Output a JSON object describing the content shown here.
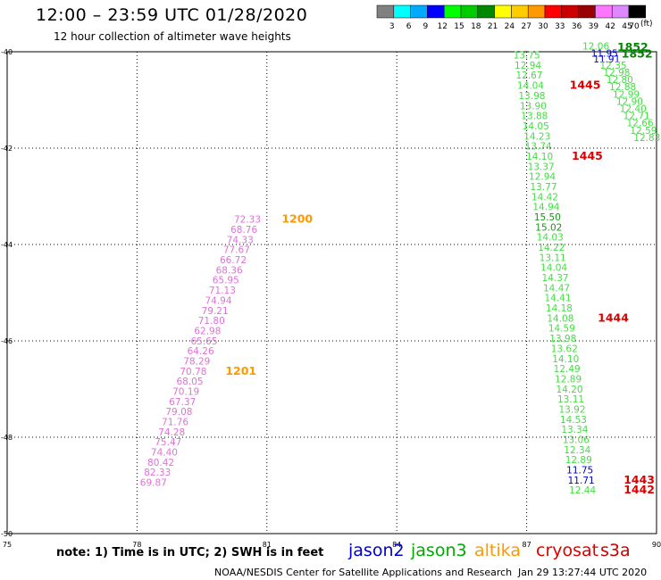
{
  "header": {
    "title": "12:00 – 23:59 UTC 01/28/2020",
    "subtitle": "12 hour collection of altimeter wave heights"
  },
  "footer": {
    "note": "note: 1) Time is in UTC; 2) SWH is in feet",
    "credit": "NOAA/NESDIS Center for Satellite Applications and Research",
    "timestamp": "Jan 29 13:27:44 UTC 2020"
  },
  "satellites": [
    {
      "name": "jason2",
      "color": "#0000cc"
    },
    {
      "name": "jason3",
      "color": "#00aa00"
    },
    {
      "name": "altika",
      "color": "#ff9900"
    },
    {
      "name": "cryosat",
      "color": "#dd0000"
    },
    {
      "name": "s3a",
      "color": "#cc0000"
    }
  ],
  "colorbar": {
    "unit": "(ft)",
    "levels": [
      "3",
      "6",
      "9",
      "12",
      "15",
      "18",
      "21",
      "24",
      "27",
      "30",
      "33",
      "36",
      "39",
      "42",
      "45",
      "70"
    ],
    "colors": [
      "#808080",
      "#00ffff",
      "#00aaff",
      "#0000ff",
      "#00ff00",
      "#00cc00",
      "#008800",
      "#ffff00",
      "#ffcc00",
      "#ff9900",
      "#ff0000",
      "#cc0000",
      "#990000",
      "#ff77ff",
      "#dd88ff",
      "#000000"
    ]
  },
  "chart_data": {
    "type": "scatter",
    "x_ticks": [
      "75",
      "78",
      "81",
      "84",
      "87",
      "90"
    ],
    "y_ticks": [
      "-40",
      "-42",
      "-44",
      "-46",
      "-48",
      "-50"
    ],
    "xlim": [
      75,
      90
    ],
    "ylim": [
      -50,
      -40
    ],
    "grid": true,
    "tracks": [
      {
        "id": "pink-track",
        "color": "#e070d8",
        "points": [
          {
            "lon": 80.55,
            "lat": -43.55,
            "v": "72.33"
          },
          {
            "lon": 80.47,
            "lat": -43.76,
            "v": "68.76"
          },
          {
            "lon": 80.38,
            "lat": -43.97,
            "v": "74.33"
          },
          {
            "lon": 80.3,
            "lat": -44.18,
            "v": "77.67"
          },
          {
            "lon": 80.22,
            "lat": -44.39,
            "v": "66.72"
          },
          {
            "lon": 80.13,
            "lat": -44.6,
            "v": "68.36"
          },
          {
            "lon": 80.05,
            "lat": -44.81,
            "v": "65.95"
          },
          {
            "lon": 79.97,
            "lat": -45.02,
            "v": "71.13"
          },
          {
            "lon": 79.88,
            "lat": -45.23,
            "v": "74.94"
          },
          {
            "lon": 79.8,
            "lat": -45.44,
            "v": "79.21"
          },
          {
            "lon": 79.72,
            "lat": -45.65,
            "v": "71.80"
          },
          {
            "lon": 79.63,
            "lat": -45.86,
            "v": "62.98"
          },
          {
            "lon": 79.55,
            "lat": -46.07,
            "v": "65.65"
          },
          {
            "lon": 79.47,
            "lat": -46.28,
            "v": "64.26"
          },
          {
            "lon": 79.38,
            "lat": -46.49,
            "v": "78.29"
          },
          {
            "lon": 79.3,
            "lat": -46.7,
            "v": "70.78"
          },
          {
            "lon": 79.22,
            "lat": -46.91,
            "v": "68.05"
          },
          {
            "lon": 79.13,
            "lat": -47.12,
            "v": "70.19"
          },
          {
            "lon": 79.05,
            "lat": -47.33,
            "v": "67.37"
          },
          {
            "lon": 78.97,
            "lat": -47.54,
            "v": "79.08"
          },
          {
            "lon": 78.88,
            "lat": -47.75,
            "v": "71.76"
          },
          {
            "lon": 78.8,
            "lat": -47.96,
            "v": "74.28"
          },
          {
            "lon": 78.72,
            "lat": -48.17,
            "v": "75.47"
          },
          {
            "lon": 78.63,
            "lat": -48.38,
            "v": "74.40"
          },
          {
            "lon": 78.55,
            "lat": -48.59,
            "v": "80.42"
          },
          {
            "lon": 78.47,
            "lat": -48.8,
            "v": "82.33"
          },
          {
            "lon": 78.38,
            "lat": -49.01,
            "v": "69.87"
          }
        ]
      },
      {
        "id": "green-track",
        "color": "#44dd44",
        "points": [
          {
            "lon": 87.0,
            "lat": -40.14,
            "v": "13.75"
          },
          {
            "lon": 87.03,
            "lat": -40.35,
            "v": "12.94"
          },
          {
            "lon": 87.06,
            "lat": -40.56,
            "v": "12.67"
          },
          {
            "lon": 87.09,
            "lat": -40.77,
            "v": "14.04"
          },
          {
            "lon": 87.12,
            "lat": -40.98,
            "v": "13.98"
          },
          {
            "lon": 87.15,
            "lat": -41.19,
            "v": "13.90"
          },
          {
            "lon": 87.18,
            "lat": -41.4,
            "v": "13.88"
          },
          {
            "lon": 87.21,
            "lat": -41.61,
            "v": "14.05"
          },
          {
            "lon": 87.24,
            "lat": -41.82,
            "v": "14.23"
          },
          {
            "lon": 87.27,
            "lat": -42.03,
            "v": "13.74"
          },
          {
            "lon": 87.3,
            "lat": -42.24,
            "v": "14.10"
          },
          {
            "lon": 87.33,
            "lat": -42.45,
            "v": "13.37"
          },
          {
            "lon": 87.36,
            "lat": -42.66,
            "v": "12.94"
          },
          {
            "lon": 87.39,
            "lat": -42.87,
            "v": "13.77"
          },
          {
            "lon": 87.42,
            "lat": -43.08,
            "v": "14.42"
          },
          {
            "lon": 87.45,
            "lat": -43.29,
            "v": "14.94"
          },
          {
            "lon": 87.48,
            "lat": -43.5,
            "v": "15.50",
            "color": "#119911"
          },
          {
            "lon": 87.51,
            "lat": -43.71,
            "v": "15.02",
            "color": "#119911"
          },
          {
            "lon": 87.54,
            "lat": -43.92,
            "v": "14.03"
          },
          {
            "lon": 87.57,
            "lat": -44.13,
            "v": "14.22"
          },
          {
            "lon": 87.6,
            "lat": -44.34,
            "v": "13.11"
          },
          {
            "lon": 87.63,
            "lat": -44.55,
            "v": "14.04"
          },
          {
            "lon": 87.66,
            "lat": -44.76,
            "v": "14.37"
          },
          {
            "lon": 87.69,
            "lat": -44.97,
            "v": "14.47"
          },
          {
            "lon": 87.72,
            "lat": -45.18,
            "v": "14.41"
          },
          {
            "lon": 87.75,
            "lat": -45.39,
            "v": "14.18"
          },
          {
            "lon": 87.78,
            "lat": -45.6,
            "v": "14.08"
          },
          {
            "lon": 87.81,
            "lat": -45.81,
            "v": "14.59"
          },
          {
            "lon": 87.84,
            "lat": -46.02,
            "v": "13.98"
          },
          {
            "lon": 87.87,
            "lat": -46.23,
            "v": "13.62"
          },
          {
            "lon": 87.9,
            "lat": -46.44,
            "v": "14.10"
          },
          {
            "lon": 87.93,
            "lat": -46.65,
            "v": "12.49"
          },
          {
            "lon": 87.96,
            "lat": -46.86,
            "v": "12.89"
          },
          {
            "lon": 87.99,
            "lat": -47.07,
            "v": "14.20"
          },
          {
            "lon": 88.02,
            "lat": -47.28,
            "v": "13.11"
          },
          {
            "lon": 88.05,
            "lat": -47.49,
            "v": "13.92"
          },
          {
            "lon": 88.08,
            "lat": -47.7,
            "v": "14.53"
          },
          {
            "lon": 88.11,
            "lat": -47.91,
            "v": "13.34"
          },
          {
            "lon": 88.14,
            "lat": -48.12,
            "v": "13.06"
          },
          {
            "lon": 88.17,
            "lat": -48.33,
            "v": "12.34"
          },
          {
            "lon": 88.2,
            "lat": -48.54,
            "v": "12.89"
          },
          {
            "lon": 88.23,
            "lat": -48.75,
            "v": "11.75",
            "color": "#0000cc"
          },
          {
            "lon": 88.26,
            "lat": -48.96,
            "v": "11.71",
            "color": "#0000cc"
          },
          {
            "lon": 88.29,
            "lat": -49.17,
            "v": "12.44"
          }
        ]
      },
      {
        "id": "ne-track",
        "color": "#44dd44",
        "points": [
          {
            "lon": 88.6,
            "lat": -39.95,
            "v": "12.06"
          },
          {
            "lon": 88.8,
            "lat": -40.1,
            "v": "11.95",
            "color": "#0000cc"
          },
          {
            "lon": 88.85,
            "lat": -40.22,
            "v": "11.91",
            "color": "#0000cc"
          },
          {
            "lon": 89.0,
            "lat": -40.35,
            "v": "12.35"
          },
          {
            "lon": 89.08,
            "lat": -40.5,
            "v": "12.98"
          },
          {
            "lon": 89.15,
            "lat": -40.65,
            "v": "12.80"
          },
          {
            "lon": 89.22,
            "lat": -40.8,
            "v": "12.88"
          },
          {
            "lon": 89.3,
            "lat": -40.95,
            "v": "12.99"
          },
          {
            "lon": 89.38,
            "lat": -41.1,
            "v": "12.90"
          },
          {
            "lon": 89.46,
            "lat": -41.25,
            "v": "12.40"
          },
          {
            "lon": 89.54,
            "lat": -41.4,
            "v": "12.71"
          },
          {
            "lon": 89.62,
            "lat": -41.55,
            "v": "12.66"
          },
          {
            "lon": 89.7,
            "lat": -41.7,
            "v": "12.59"
          },
          {
            "lon": 89.78,
            "lat": -41.85,
            "v": "12.83"
          }
        ]
      }
    ],
    "time_labels": [
      {
        "lon": 81.7,
        "lat": -43.55,
        "text": "1200",
        "color": "#ff9900"
      },
      {
        "lon": 80.4,
        "lat": -46.7,
        "text": "1201",
        "color": "#ff9900"
      },
      {
        "lon": 88.35,
        "lat": -40.77,
        "text": "1445",
        "color": "#dd0000"
      },
      {
        "lon": 88.4,
        "lat": -42.24,
        "text": "1445",
        "color": "#dd0000"
      },
      {
        "lon": 89.0,
        "lat": -45.6,
        "text": "1444",
        "color": "#dd0000"
      },
      {
        "lon": 89.6,
        "lat": -48.96,
        "text": "1443",
        "color": "#dd0000"
      },
      {
        "lon": 89.6,
        "lat": -49.17,
        "text": "1442",
        "color": "#dd0000"
      },
      {
        "lon": 89.45,
        "lat": -39.98,
        "text": "1852",
        "color": "#008800"
      },
      {
        "lon": 89.55,
        "lat": -40.12,
        "text": "1852",
        "color": "#008800"
      }
    ]
  }
}
